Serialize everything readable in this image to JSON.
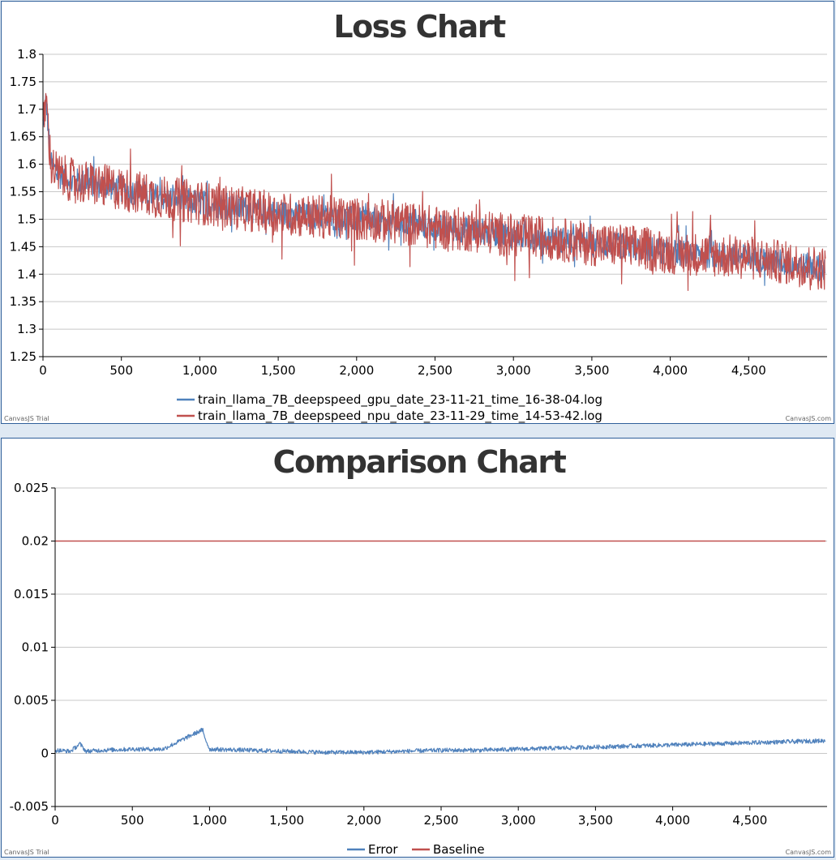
{
  "colors": {
    "gpu": "#4f81bc",
    "npu": "#c0504e",
    "error": "#4f81bc",
    "baseline": "#c0504e"
  },
  "chart_data": [
    {
      "type": "line",
      "title": "Loss Chart",
      "xlim": [
        0,
        5000
      ],
      "ylim": [
        1.25,
        1.8
      ],
      "x_ticks": [
        "0",
        "500",
        "1,000",
        "1,500",
        "2,000",
        "2,500",
        "3,000",
        "3,500",
        "4,000",
        "4,500"
      ],
      "y_ticks": [
        "1.25",
        "1.3",
        "1.35",
        "1.4",
        "1.45",
        "1.5",
        "1.55",
        "1.6",
        "1.65",
        "1.7",
        "1.75",
        "1.8"
      ],
      "grid": true,
      "legend": "bottom",
      "series": [
        {
          "name": "train_llama_7B_deepspeed_gpu_date_23-11-21_time_16-38-04.log",
          "x": [
            0,
            20,
            50,
            100,
            200,
            300,
            500,
            750,
            1000,
            1250,
            1500,
            1750,
            2000,
            2250,
            2500,
            2750,
            3000,
            3250,
            3500,
            3750,
            4000,
            4250,
            4500,
            4750,
            4990
          ],
          "y": [
            1.66,
            1.72,
            1.6,
            1.58,
            1.57,
            1.565,
            1.555,
            1.54,
            1.53,
            1.52,
            1.51,
            1.505,
            1.5,
            1.495,
            1.485,
            1.48,
            1.47,
            1.465,
            1.455,
            1.45,
            1.44,
            1.435,
            1.43,
            1.42,
            1.41
          ]
        },
        {
          "name": "train_llama_7B_deepspeed_npu_date_23-11-29_time_14-53-42.log",
          "x": [
            0,
            20,
            50,
            100,
            200,
            300,
            500,
            750,
            1000,
            1250,
            1500,
            1750,
            2000,
            2250,
            2500,
            2750,
            3000,
            3250,
            3500,
            3750,
            4000,
            4250,
            4500,
            4750,
            4990
          ],
          "y": [
            1.66,
            1.72,
            1.6,
            1.58,
            1.57,
            1.565,
            1.555,
            1.54,
            1.53,
            1.52,
            1.51,
            1.505,
            1.5,
            1.495,
            1.485,
            1.48,
            1.47,
            1.465,
            1.455,
            1.45,
            1.44,
            1.435,
            1.43,
            1.42,
            1.41
          ],
          "noise_amplitude": 0.04
        }
      ],
      "watermark_left": "CanvasJS Trial",
      "watermark_right": "CanvasJS.com"
    },
    {
      "type": "line",
      "title": "Comparison Chart",
      "xlim": [
        0,
        5000
      ],
      "ylim": [
        -0.005,
        0.025
      ],
      "x_ticks": [
        "0",
        "500",
        "1,000",
        "1,500",
        "2,000",
        "2,500",
        "3,000",
        "3,500",
        "4,000",
        "4,500"
      ],
      "y_ticks": [
        "-0.005",
        "0",
        "0.005",
        "0.01",
        "0.015",
        "0.02",
        "0.025"
      ],
      "grid": true,
      "legend": "bottom",
      "series": [
        {
          "name": "Error",
          "x": [
            0,
            100,
            160,
            200,
            300,
            500,
            700,
            950,
            1000,
            1250,
            1500,
            1750,
            2000,
            2250,
            2500,
            2750,
            3000,
            3250,
            3500,
            3750,
            4000,
            4250,
            4500,
            4750,
            4990
          ],
          "y": [
            0.0003,
            0.0002,
            0.0009,
            0.0002,
            0.0003,
            0.0004,
            0.0004,
            0.0022,
            0.0004,
            0.0003,
            0.0002,
            0.0001,
            0.0001,
            0.0002,
            0.0003,
            0.0003,
            0.0004,
            0.0005,
            0.0006,
            0.0007,
            0.0008,
            0.0009,
            0.001,
            0.0011,
            0.0012
          ]
        },
        {
          "name": "Baseline",
          "x": [
            0,
            4990
          ],
          "y": [
            0.02,
            0.02
          ]
        }
      ],
      "watermark_left": "CanvasJS Trial",
      "watermark_right": "CanvasJS.com"
    }
  ]
}
